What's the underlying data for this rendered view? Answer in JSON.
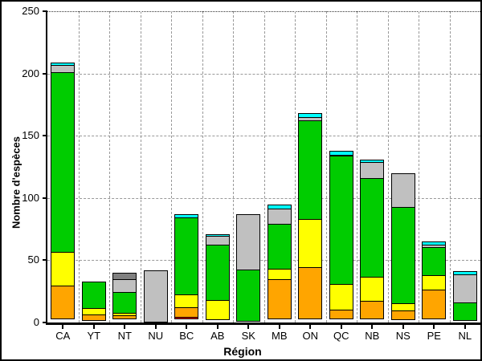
{
  "figure": {
    "background_color": "#ffffff",
    "frame_color": "#000000"
  },
  "chart_data": {
    "type": "bar",
    "variant": "stacked-vertical",
    "title": "",
    "xlabel": "Région",
    "ylabel": "Nombre d'espèces",
    "ylim": [
      0,
      250
    ],
    "yticks": [
      0,
      50,
      100,
      150,
      200,
      250
    ],
    "grid": {
      "horizontal": "dashed gray every 50",
      "vertical": "dashed gray between categories",
      "top_border": "dotted"
    },
    "legend": "none",
    "categories": [
      "CA",
      "YT",
      "NT",
      "NU",
      "BC",
      "AB",
      "SK",
      "MB",
      "ON",
      "QC",
      "NB",
      "NS",
      "PE",
      "NL"
    ],
    "segment_colors": {
      "red": "#ee0000",
      "orange": "#ffa500",
      "yellow": "#ffff00",
      "green": "#00cc00",
      "gray": "#c0c0c0",
      "darkgray": "#808080",
      "cyan": "#00ffff"
    },
    "bars": [
      {
        "category": "CA",
        "total": 209,
        "segments": [
          {
            "color": "orange",
            "value": 27
          },
          {
            "color": "yellow",
            "value": 28
          },
          {
            "color": "green",
            "value": 145
          },
          {
            "color": "gray",
            "value": 6
          },
          {
            "color": "cyan",
            "value": 3
          }
        ]
      },
      {
        "category": "YT",
        "total": 33,
        "segments": [
          {
            "color": "orange",
            "value": 5
          },
          {
            "color": "yellow",
            "value": 6
          },
          {
            "color": "green",
            "value": 22
          }
        ]
      },
      {
        "category": "NT",
        "total": 40,
        "segments": [
          {
            "color": "orange",
            "value": 3
          },
          {
            "color": "yellow",
            "value": 3
          },
          {
            "color": "green",
            "value": 17
          },
          {
            "color": "gray",
            "value": 11
          },
          {
            "color": "darkgray",
            "value": 6
          }
        ]
      },
      {
        "category": "NU",
        "total": 42,
        "segments": [
          {
            "color": "gray",
            "value": 42
          }
        ]
      },
      {
        "category": "BC",
        "total": 87,
        "segments": [
          {
            "color": "red",
            "value": 2
          },
          {
            "color": "orange",
            "value": 8
          },
          {
            "color": "yellow",
            "value": 11
          },
          {
            "color": "green",
            "value": 63
          },
          {
            "color": "cyan",
            "value": 3
          }
        ]
      },
      {
        "category": "AB",
        "total": 71,
        "segments": [
          {
            "color": "yellow",
            "value": 16
          },
          {
            "color": "green",
            "value": 45
          },
          {
            "color": "gray",
            "value": 8
          },
          {
            "color": "cyan",
            "value": 2
          }
        ]
      },
      {
        "category": "SK",
        "total": 87,
        "segments": [
          {
            "color": "green",
            "value": 42
          },
          {
            "color": "gray",
            "value": 45
          }
        ]
      },
      {
        "category": "MB",
        "total": 95,
        "segments": [
          {
            "color": "orange",
            "value": 32
          },
          {
            "color": "yellow",
            "value": 9
          },
          {
            "color": "green",
            "value": 37
          },
          {
            "color": "gray",
            "value": 13
          },
          {
            "color": "cyan",
            "value": 4
          }
        ]
      },
      {
        "category": "ON",
        "total": 168,
        "segments": [
          {
            "color": "orange",
            "value": 42
          },
          {
            "color": "yellow",
            "value": 39
          },
          {
            "color": "green",
            "value": 80
          },
          {
            "color": "gray",
            "value": 3
          },
          {
            "color": "cyan",
            "value": 4
          }
        ]
      },
      {
        "category": "QC",
        "total": 138,
        "segments": [
          {
            "color": "orange",
            "value": 8
          },
          {
            "color": "yellow",
            "value": 21
          },
          {
            "color": "green",
            "value": 104
          },
          {
            "color": "gray",
            "value": 1
          },
          {
            "color": "cyan",
            "value": 4
          }
        ]
      },
      {
        "category": "NB",
        "total": 131,
        "segments": [
          {
            "color": "orange",
            "value": 15
          },
          {
            "color": "yellow",
            "value": 20
          },
          {
            "color": "green",
            "value": 80
          },
          {
            "color": "gray",
            "value": 13
          },
          {
            "color": "cyan",
            "value": 3
          }
        ]
      },
      {
        "category": "NS",
        "total": 120,
        "segments": [
          {
            "color": "orange",
            "value": 8
          },
          {
            "color": "yellow",
            "value": 6
          },
          {
            "color": "green",
            "value": 78
          },
          {
            "color": "gray",
            "value": 28
          }
        ]
      },
      {
        "category": "PE",
        "total": 65,
        "segments": [
          {
            "color": "orange",
            "value": 24
          },
          {
            "color": "yellow",
            "value": 12
          },
          {
            "color": "green",
            "value": 23
          },
          {
            "color": "gray",
            "value": 3
          },
          {
            "color": "cyan",
            "value": 3
          }
        ]
      },
      {
        "category": "NL",
        "total": 41,
        "segments": [
          {
            "color": "green",
            "value": 15
          },
          {
            "color": "gray",
            "value": 23
          },
          {
            "color": "cyan",
            "value": 3
          }
        ]
      }
    ]
  }
}
